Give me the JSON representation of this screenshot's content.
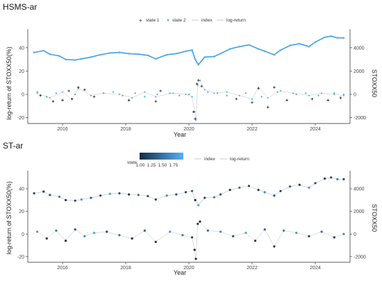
{
  "colors": {
    "state1": "#1a1a1a",
    "state2": "#5aaee8",
    "index": "#3aa0e6",
    "log_return_line": "#bdbdbd",
    "gradient_low": "#132b43",
    "gradient_high": "#56b1f7",
    "axis": "#222222"
  },
  "chart_data": [
    {
      "type": "scatter",
      "title": "HSMS-ar",
      "xlabel": "Year",
      "ylabel": "log-return of STOXX50(%)",
      "y2label": "STOXX50",
      "legend_position": "top",
      "legend": [
        {
          "label": "state 1",
          "marker": "plus",
          "color": "#1a1a1a"
        },
        {
          "label": "state 2",
          "marker": "dot",
          "color": "#5aaee8"
        },
        {
          "label": "index",
          "marker": "line",
          "color": "#3aa0e6"
        },
        {
          "label": "log-return",
          "marker": "line",
          "color": "#bdbdbd"
        }
      ],
      "x_ticks": [
        "2016",
        "2018",
        "2020",
        "2022",
        "2024"
      ],
      "xlim": [
        2014.9,
        2025.1
      ],
      "y_ticks": [
        "40",
        "20",
        "0",
        "-20"
      ],
      "ylim": [
        -25,
        56
      ],
      "y2_ticks": [
        "4000",
        "2000",
        "0",
        "-2000"
      ],
      "y2lim": [
        -2500,
        5600
      ],
      "grid": false,
      "series": [
        {
          "name": "index",
          "units": "STOXX50",
          "x": [
            2015.1,
            2015.4,
            2015.6,
            2015.9,
            2016.1,
            2016.4,
            2016.6,
            2016.9,
            2017.2,
            2017.5,
            2017.8,
            2018.1,
            2018.4,
            2018.7,
            2018.95,
            2019.3,
            2019.6,
            2019.9,
            2020.1,
            2020.2,
            2020.3,
            2020.5,
            2020.8,
            2021.0,
            2021.3,
            2021.6,
            2021.9,
            2022.2,
            2022.4,
            2022.7,
            2022.9,
            2023.2,
            2023.5,
            2023.8,
            2024.0,
            2024.3,
            2024.5,
            2024.7,
            2024.9
          ],
          "values": [
            3600,
            3750,
            3450,
            3300,
            3000,
            2950,
            3050,
            3200,
            3400,
            3550,
            3600,
            3500,
            3450,
            3350,
            3050,
            3400,
            3500,
            3700,
            3800,
            3000,
            2550,
            3200,
            3250,
            3500,
            3900,
            4100,
            4250,
            3900,
            3700,
            3400,
            3800,
            4200,
            4350,
            4100,
            4500,
            4900,
            5000,
            4850,
            4850
          ]
        },
        {
          "name": "log-return",
          "units": "%",
          "x": [
            2015.2,
            2015.6,
            2016.0,
            2016.3,
            2016.5,
            2016.9,
            2017.3,
            2017.8,
            2018.2,
            2018.6,
            2018.95,
            2019.5,
            2019.9,
            2020.1,
            2020.18,
            2020.22,
            2020.28,
            2020.35,
            2020.5,
            2020.8,
            2021.2,
            2021.6,
            2022.0,
            2022.2,
            2022.5,
            2022.9,
            2023.3,
            2023.8,
            2024.2,
            2024.6,
            2024.9
          ],
          "values": [
            1,
            -3,
            2,
            -4,
            5,
            -1,
            1,
            0,
            -3,
            2,
            -2,
            1,
            0,
            -2,
            -15,
            -22,
            8,
            12,
            4,
            1,
            2,
            -1,
            -4,
            6,
            -3,
            3,
            1,
            -1,
            1,
            0,
            -1
          ]
        },
        {
          "name": "state 1",
          "x": [
            2015.3,
            2015.7,
            2016.0,
            2016.2,
            2016.3,
            2016.5,
            2016.7,
            2017.0,
            2018.1,
            2018.95,
            2019.1,
            2020.15,
            2020.2,
            2020.25,
            2020.3,
            2020.4,
            2021.5,
            2022.0,
            2022.2,
            2022.5,
            2022.7,
            2023.1,
            2023.9,
            2024.4,
            2024.8
          ],
          "values": [
            -1,
            -6,
            -5,
            3,
            -4,
            6,
            4,
            -2,
            -5,
            -6,
            3,
            -15,
            -21,
            9,
            12,
            7,
            -4,
            -7,
            5,
            -11,
            6,
            -5,
            -4,
            -5,
            -3
          ]
        },
        {
          "name": "state 2",
          "x": [
            2015.2,
            2015.5,
            2015.8,
            2016.4,
            2016.9,
            2017.3,
            2017.6,
            2017.9,
            2018.3,
            2018.6,
            2019.0,
            2019.4,
            2019.7,
            2020.0,
            2020.6,
            2020.9,
            2021.2,
            2021.8,
            2022.3,
            2022.8,
            2023.4,
            2023.7,
            2024.1,
            2024.6,
            2024.9
          ],
          "values": [
            2,
            -2,
            1,
            0,
            -1,
            1,
            2,
            -1,
            1,
            -2,
            0,
            1,
            -1,
            0,
            2,
            1,
            -1,
            1,
            -2,
            2,
            0,
            1,
            -1,
            1,
            0
          ]
        }
      ]
    },
    {
      "type": "scatter",
      "title": "ST-ar",
      "xlabel": "Year",
      "ylabel": "log-return of STOXX50(%)",
      "y2label": "STOXX50",
      "legend_position": "top",
      "legend": [
        {
          "label": "state",
          "marker": "gradient",
          "color": "#56b1f7"
        },
        {
          "label": "index",
          "marker": "line",
          "color": "#bdbdbd"
        },
        {
          "label": "log-return",
          "marker": "line",
          "color": "#bdbdbd"
        }
      ],
      "color_scale": {
        "label": "state",
        "ticks": [
          "1.00",
          "1.25",
          "1.50",
          "1.75"
        ],
        "range": [
          1.0,
          2.0
        ]
      },
      "x_ticks": [
        "2016",
        "2018",
        "2020",
        "2022",
        "2024"
      ],
      "xlim": [
        2014.9,
        2025.1
      ],
      "y_ticks": [
        "40",
        "20",
        "0",
        "-20"
      ],
      "ylim": [
        -25,
        56
      ],
      "y2_ticks": [
        "4000",
        "2000",
        "0",
        "-2000"
      ],
      "y2lim": [
        -2500,
        5600
      ],
      "grid": false,
      "series": [
        {
          "name": "index",
          "units": "STOXX50",
          "x": [
            2015.1,
            2015.4,
            2015.6,
            2015.9,
            2016.1,
            2016.4,
            2016.6,
            2016.9,
            2017.2,
            2017.5,
            2017.8,
            2018.1,
            2018.4,
            2018.7,
            2018.95,
            2019.3,
            2019.6,
            2019.9,
            2020.1,
            2020.2,
            2020.3,
            2020.5,
            2020.8,
            2021.0,
            2021.3,
            2021.6,
            2021.9,
            2022.2,
            2022.4,
            2022.7,
            2022.9,
            2023.2,
            2023.5,
            2023.8,
            2024.0,
            2024.3,
            2024.5,
            2024.7,
            2024.9
          ],
          "values": [
            3600,
            3750,
            3450,
            3300,
            3000,
            2950,
            3050,
            3200,
            3400,
            3550,
            3600,
            3500,
            3450,
            3350,
            3050,
            3400,
            3500,
            3700,
            3800,
            3000,
            2550,
            3200,
            3250,
            3500,
            3900,
            4100,
            4250,
            3900,
            3700,
            3400,
            3800,
            4200,
            4350,
            4100,
            4500,
            4900,
            5000,
            4850,
            4850
          ],
          "states": [
            1.2,
            1.1,
            1.3,
            1.6,
            1.1,
            1.2,
            1.8,
            1.4,
            1.2,
            1.9,
            1.3,
            1.1,
            1.5,
            1.2,
            1.1,
            1.7,
            1.3,
            1.2,
            1.4,
            1.0,
            1.9,
            1.2,
            1.6,
            1.3,
            1.1,
            1.5,
            1.2,
            1.1,
            1.7,
            1.3,
            1.2,
            1.4,
            1.1,
            1.8,
            1.2,
            1.1,
            1.3,
            1.6,
            1.2
          ]
        },
        {
          "name": "log-return",
          "units": "%",
          "x": [
            2015.2,
            2015.5,
            2015.8,
            2016.1,
            2016.4,
            2016.7,
            2017.0,
            2017.4,
            2017.8,
            2018.2,
            2018.6,
            2018.95,
            2019.4,
            2019.8,
            2020.1,
            2020.18,
            2020.22,
            2020.28,
            2020.35,
            2020.6,
            2021.0,
            2021.4,
            2021.8,
            2022.1,
            2022.4,
            2022.7,
            2023.0,
            2023.4,
            2023.8,
            2024.2,
            2024.6,
            2024.9
          ],
          "values": [
            2,
            -4,
            3,
            -6,
            4,
            -2,
            1,
            2,
            -1,
            -4,
            3,
            -7,
            2,
            -1,
            -3,
            -14,
            -22,
            9,
            11,
            3,
            2,
            -2,
            1,
            -6,
            4,
            -11,
            3,
            1,
            -2,
            2,
            -3,
            0
          ],
          "states": [
            1.8,
            1.1,
            1.6,
            1.0,
            1.3,
            1.7,
            1.9,
            1.2,
            1.5,
            1.0,
            1.4,
            1.0,
            1.8,
            1.6,
            1.2,
            1.0,
            1.0,
            1.1,
            1.0,
            1.5,
            1.7,
            1.3,
            1.9,
            1.1,
            1.4,
            1.0,
            1.6,
            1.8,
            1.2,
            1.5,
            1.1,
            1.7
          ]
        }
      ]
    }
  ]
}
